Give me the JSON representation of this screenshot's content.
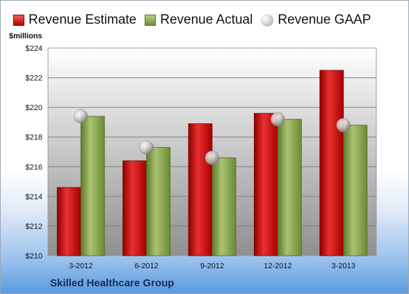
{
  "chart_data": {
    "type": "bar",
    "unit_label": "$millions",
    "categories": [
      "3-2012",
      "6-2012",
      "9-2012",
      "12-2012",
      "3-2013"
    ],
    "series": [
      {
        "name": "Revenue Estimate",
        "kind": "bar",
        "color": "#cc1111",
        "values": [
          214.6,
          216.4,
          218.9,
          219.6,
          222.5
        ]
      },
      {
        "name": "Revenue Actual",
        "kind": "bar",
        "color": "#8aa84e",
        "values": [
          219.4,
          217.3,
          216.6,
          219.2,
          218.8
        ]
      },
      {
        "name": "Revenue GAAP",
        "kind": "marker",
        "color": "#b8b8b8",
        "values": [
          219.4,
          217.3,
          216.6,
          219.2,
          218.8
        ]
      }
    ],
    "ylim": [
      210,
      224
    ],
    "yticks": [
      "$210",
      "$212",
      "$214",
      "$216",
      "$218",
      "$220",
      "$222",
      "$224"
    ],
    "grid": true,
    "legend_position": "top"
  },
  "footer": {
    "company": "Skilled Healthcare Group"
  }
}
